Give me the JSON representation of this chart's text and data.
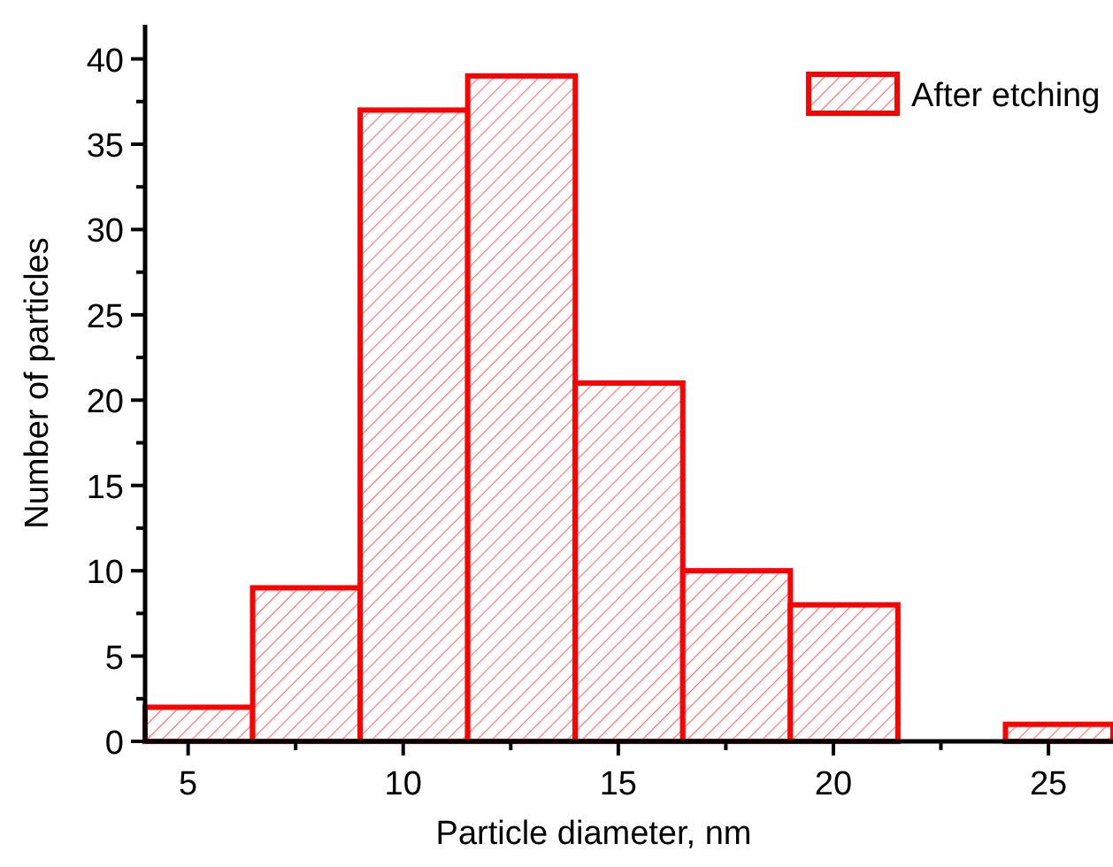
{
  "chart_data": {
    "type": "histogram",
    "xlabel": "Particle diameter, nm",
    "ylabel": "Number of particles",
    "bins": [
      4,
      6.5,
      9,
      11.5,
      14,
      16.5,
      19,
      21.5,
      24,
      26.5
    ],
    "series": [
      {
        "name": "After etching",
        "color": "#ff0000",
        "values": [
          2,
          9,
          37,
          39,
          21,
          10,
          8,
          0,
          1
        ]
      }
    ],
    "xlim": [
      4,
      26.5
    ],
    "xticks": [
      5,
      {
        "value": 7.5,
        "label": null
      },
      10,
      {
        "value": 12.5,
        "label": null
      },
      15,
      {
        "value": 17.5,
        "label": null
      },
      20,
      {
        "value": 22.5,
        "label": null
      },
      25
    ],
    "ylim": [
      0,
      42
    ],
    "yticks": [
      0,
      {
        "value": 2.5,
        "label": null
      },
      5,
      {
        "value": 7.5,
        "label": null
      },
      10,
      {
        "value": 12.5,
        "label": null
      },
      15,
      {
        "value": 17.5,
        "label": null
      },
      20,
      {
        "value": 22.5,
        "label": null
      },
      25,
      {
        "value": 27.5,
        "label": null
      },
      30,
      {
        "value": 32.5,
        "label": null
      },
      35,
      {
        "value": 37.5,
        "label": null
      },
      40
    ],
    "legend": "top right",
    "grid": false
  }
}
